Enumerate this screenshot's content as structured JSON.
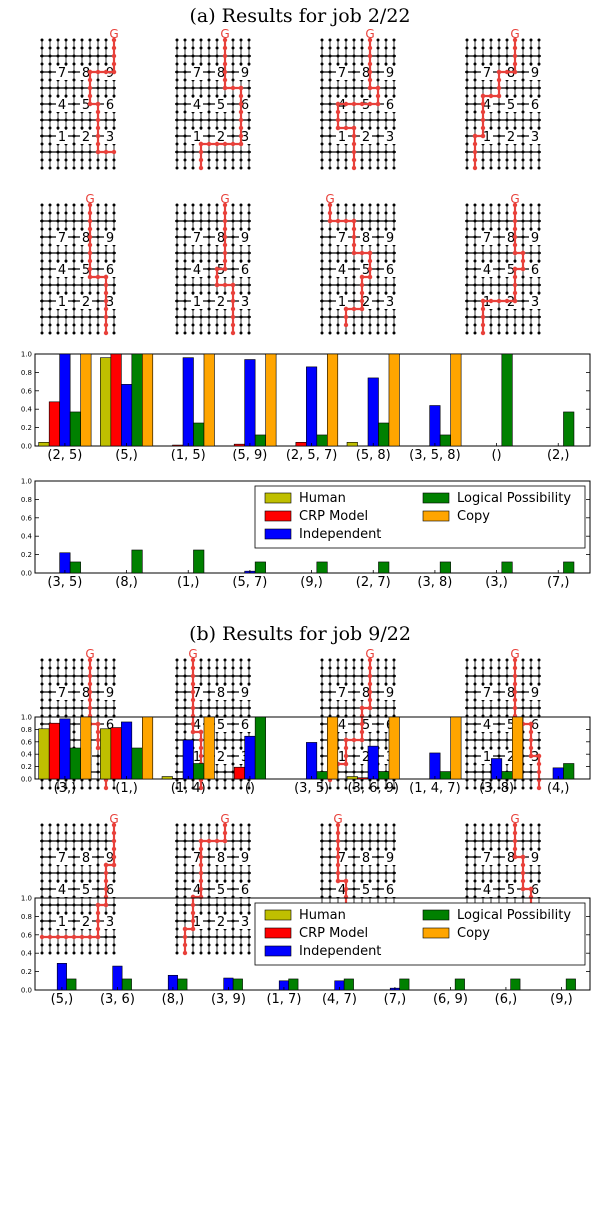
{
  "colors": {
    "Human": "#bfbf00",
    "CRP Model": "#ff0000",
    "Independent": "#0000ff",
    "Logical Possibility": "#008000",
    "Copy": "#ffa500",
    "path": "#e8403a",
    "grid": "#000000"
  },
  "legend_entries": [
    "Human",
    "CRP Model",
    "Independent",
    "Logical Possibility",
    "Copy"
  ],
  "grid_numbers": [
    "1",
    "2",
    "3",
    "4",
    "5",
    "6",
    "7",
    "8",
    "9"
  ],
  "goal_label": "G",
  "sections": [
    {
      "title": "(a) Results for job 2/22",
      "trajectories": [
        [
          [
            9,
            0
          ],
          [
            9,
            4
          ],
          [
            6,
            4
          ],
          [
            6,
            8
          ],
          [
            7,
            8
          ],
          [
            7,
            14
          ],
          [
            9,
            14
          ]
        ],
        [
          [
            6,
            0
          ],
          [
            6,
            6
          ],
          [
            8,
            6
          ],
          [
            8,
            13
          ],
          [
            3,
            13
          ],
          [
            3,
            16
          ]
        ],
        [
          [
            6,
            0
          ],
          [
            6,
            6
          ],
          [
            7,
            6
          ],
          [
            7,
            8
          ],
          [
            2,
            8
          ],
          [
            2,
            11
          ],
          [
            4,
            11
          ],
          [
            4,
            16
          ]
        ],
        [
          [
            6,
            0
          ],
          [
            6,
            4
          ],
          [
            4,
            4
          ],
          [
            4,
            7
          ],
          [
            2,
            7
          ],
          [
            2,
            12
          ],
          [
            1,
            12
          ],
          [
            1,
            16
          ]
        ],
        [
          [
            6,
            0
          ],
          [
            6,
            9
          ],
          [
            8,
            9
          ],
          [
            8,
            16
          ]
        ],
        [
          [
            6,
            0
          ],
          [
            6,
            8
          ],
          [
            5,
            8
          ],
          [
            5,
            10
          ],
          [
            7,
            10
          ],
          [
            7,
            16
          ]
        ],
        [
          [
            1,
            0
          ],
          [
            1,
            2
          ],
          [
            4,
            2
          ],
          [
            4,
            6
          ],
          [
            6,
            6
          ],
          [
            6,
            9
          ],
          [
            5,
            9
          ],
          [
            5,
            13
          ],
          [
            3,
            13
          ],
          [
            3,
            15
          ]
        ],
        [
          [
            6,
            0
          ],
          [
            6,
            6
          ],
          [
            7,
            6
          ],
          [
            7,
            8
          ],
          [
            6,
            8
          ],
          [
            6,
            12
          ],
          [
            2,
            12
          ],
          [
            2,
            16
          ]
        ]
      ],
      "charts": [
        {
          "type": "bar",
          "categories": [
            "(2, 5)",
            "(5,)",
            "(1, 5)",
            "(5, 9)",
            "(2, 5, 7)",
            "(5, 8)",
            "(3, 5, 8)",
            "()",
            "(2,)"
          ],
          "ylim": [
            0,
            1.0
          ],
          "yticks": [
            "0.0",
            "0.2",
            "0.4",
            "0.6",
            "0.8",
            "1.0"
          ],
          "series": [
            {
              "name": "Human",
              "values": [
                0.04,
                0.96,
                0.0,
                0.0,
                0.0,
                0.04,
                0.0,
                0.0,
                0.0
              ]
            },
            {
              "name": "CRP Model",
              "values": [
                0.48,
                1.0,
                0.01,
                0.02,
                0.04,
                0.0,
                0.0,
                0.0,
                0.0
              ]
            },
            {
              "name": "Independent",
              "values": [
                1.0,
                0.67,
                0.96,
                0.94,
                0.86,
                0.74,
                0.44,
                0.0,
                0.0
              ]
            },
            {
              "name": "Logical Possibility",
              "values": [
                0.37,
                1.0,
                0.25,
                0.12,
                0.12,
                0.25,
                0.12,
                1.0,
                0.37
              ]
            },
            {
              "name": "Copy",
              "values": [
                1.0,
                1.0,
                1.0,
                1.0,
                1.0,
                1.0,
                1.0,
                0.0,
                0.0
              ]
            }
          ],
          "legend": false
        },
        {
          "type": "bar",
          "categories": [
            "(3, 5)",
            "(8,)",
            "(1,)",
            "(5, 7)",
            "(9,)",
            "(2, 7)",
            "(3, 8)",
            "(3,)",
            "(7,)"
          ],
          "ylim": [
            0,
            1.0
          ],
          "yticks": [
            "0.0",
            "0.2",
            "0.4",
            "0.6",
            "0.8",
            "1.0"
          ],
          "series": [
            {
              "name": "Human",
              "values": [
                0,
                0,
                0,
                0,
                0,
                0,
                0,
                0,
                0
              ]
            },
            {
              "name": "CRP Model",
              "values": [
                0,
                0,
                0,
                0,
                0,
                0,
                0,
                0,
                0
              ]
            },
            {
              "name": "Independent",
              "values": [
                0.22,
                0.0,
                0.0,
                0.02,
                0.0,
                0.0,
                0.0,
                0.0,
                0.0
              ]
            },
            {
              "name": "Logical Possibility",
              "values": [
                0.12,
                0.25,
                0.25,
                0.12,
                0.12,
                0.12,
                0.12,
                0.12,
                0.12
              ]
            },
            {
              "name": "Copy",
              "values": [
                0,
                0,
                0,
                0,
                0,
                0,
                0,
                0,
                0
              ]
            }
          ],
          "legend": true
        }
      ]
    },
    {
      "title": "(b) Results for job 9/22",
      "trajectories": [
        [
          [
            6,
            0
          ],
          [
            6,
            8
          ],
          [
            7,
            8
          ],
          [
            7,
            11
          ],
          [
            8,
            11
          ],
          [
            8,
            16
          ]
        ],
        [
          [
            2,
            0
          ],
          [
            2,
            9
          ],
          [
            3,
            9
          ],
          [
            3,
            16
          ]
        ],
        [
          [
            6,
            0
          ],
          [
            6,
            6
          ],
          [
            5,
            6
          ],
          [
            5,
            10
          ],
          [
            3,
            10
          ],
          [
            3,
            13
          ],
          [
            1,
            13
          ],
          [
            1,
            15
          ]
        ],
        [
          [
            6,
            0
          ],
          [
            6,
            8
          ],
          [
            8,
            8
          ],
          [
            8,
            12
          ],
          [
            9,
            12
          ],
          [
            9,
            16
          ]
        ],
        [
          [
            9,
            0
          ],
          [
            9,
            5
          ],
          [
            8,
            5
          ],
          [
            8,
            10
          ],
          [
            7,
            10
          ],
          [
            7,
            14
          ],
          [
            0,
            14
          ]
        ],
        [
          [
            6,
            0
          ],
          [
            6,
            2
          ],
          [
            3,
            2
          ],
          [
            3,
            9
          ],
          [
            2,
            9
          ],
          [
            2,
            13
          ],
          [
            1,
            13
          ],
          [
            1,
            16
          ]
        ],
        [
          [
            2,
            0
          ],
          [
            2,
            7
          ],
          [
            3,
            7
          ],
          [
            3,
            11
          ],
          [
            4,
            11
          ],
          [
            4,
            16
          ]
        ],
        [
          [
            6,
            0
          ],
          [
            6,
            4
          ],
          [
            7,
            4
          ],
          [
            7,
            8
          ],
          [
            8,
            8
          ],
          [
            8,
            12
          ],
          [
            9,
            12
          ],
          [
            9,
            16
          ]
        ]
      ],
      "charts": [
        {
          "type": "bar",
          "categories": [
            "(3,)",
            "(1,)",
            "(1, 4)",
            "()",
            "(3, 5)",
            "(3, 6, 9)",
            "(1, 4, 7)",
            "(3, 8)",
            "(4,)"
          ],
          "ylim": [
            0,
            1.0
          ],
          "yticks": [
            "0.0",
            "0.2",
            "0.4",
            "0.6",
            "0.8",
            "1.0"
          ],
          "series": [
            {
              "name": "Human",
              "values": [
                0.81,
                0.81,
                0.04,
                0.0,
                0.0,
                0.04,
                0.0,
                0.0,
                0.0
              ]
            },
            {
              "name": "CRP Model",
              "values": [
                0.9,
                0.83,
                0.01,
                0.19,
                0.0,
                0.02,
                0.0,
                0.0,
                0.0
              ]
            },
            {
              "name": "Independent",
              "values": [
                0.97,
                0.92,
                0.63,
                0.69,
                0.59,
                0.53,
                0.42,
                0.33,
                0.18
              ]
            },
            {
              "name": "Logical Possibility",
              "values": [
                0.5,
                0.5,
                0.25,
                1.0,
                0.12,
                0.12,
                0.12,
                0.12,
                0.25
              ]
            },
            {
              "name": "Copy",
              "values": [
                1.0,
                1.0,
                1.0,
                0.0,
                1.0,
                1.0,
                1.0,
                1.0,
                0.0
              ]
            }
          ],
          "legend": false
        },
        {
          "type": "bar",
          "categories": [
            "(5,)",
            "(3, 6)",
            "(8,)",
            "(3, 9)",
            "(1, 7)",
            "(4, 7)",
            "(7,)",
            "(6, 9)",
            "(6,)",
            "(9,)"
          ],
          "ylim": [
            0,
            1.0
          ],
          "yticks": [
            "0.0",
            "0.2",
            "0.4",
            "0.6",
            "0.8",
            "1.0"
          ],
          "series": [
            {
              "name": "Human",
              "values": [
                0,
                0,
                0,
                0,
                0,
                0,
                0,
                0,
                0,
                0
              ]
            },
            {
              "name": "CRP Model",
              "values": [
                0,
                0,
                0,
                0,
                0,
                0,
                0,
                0,
                0,
                0
              ]
            },
            {
              "name": "Independent",
              "values": [
                0.29,
                0.26,
                0.16,
                0.13,
                0.1,
                0.1,
                0.02,
                0.0,
                0.0,
                0.0
              ]
            },
            {
              "name": "Logical Possibility",
              "values": [
                0.12,
                0.12,
                0.12,
                0.12,
                0.12,
                0.12,
                0.12,
                0.12,
                0.12,
                0.12
              ]
            },
            {
              "name": "Copy",
              "values": [
                0,
                0,
                0,
                0,
                0,
                0,
                0,
                0,
                0,
                0
              ]
            }
          ],
          "legend": true
        }
      ]
    }
  ]
}
